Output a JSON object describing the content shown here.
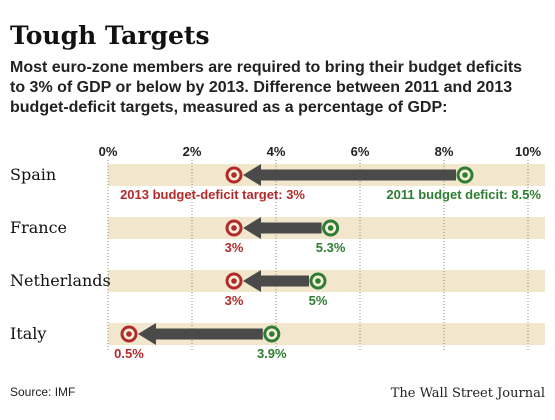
{
  "title": "Tough Targets",
  "subtitle_lines": [
    "Most euro-zone members are required to bring their budget deficits",
    "to 3% of GDP or below by 2013. Difference between 2011 and 2013",
    "budget-deficit targets, measured as a percentage of GDP:"
  ],
  "source": "Source: IMF",
  "publisher": "The Wall Street Journal",
  "colors": {
    "band": "#f2e6cc",
    "arrow": "#4a4a4a",
    "target_2013": "#b22a2a",
    "deficit_2011": "#2e7d32"
  },
  "chart_data": {
    "type": "arrow-range",
    "x_ticks": [
      "0%",
      "2%",
      "4%",
      "6%",
      "8%",
      "10%"
    ],
    "xlim": [
      0,
      10
    ],
    "unit": "% of GDP",
    "categories": [
      "Spain",
      "France",
      "Netherlands",
      "Italy"
    ],
    "series": [
      {
        "name": "2011 budget deficit",
        "values": [
          8.5,
          5.3,
          5,
          3.9
        ],
        "labels": [
          "2011 budget deficit: 8.5%",
          "5.3%",
          "5%",
          "3.9%"
        ]
      },
      {
        "name": "2013 budget-deficit target",
        "values": [
          3,
          3,
          3,
          0.5
        ],
        "labels": [
          "2013 budget-deficit target: 3%",
          "3%",
          "3%",
          "0.5%"
        ]
      }
    ]
  }
}
